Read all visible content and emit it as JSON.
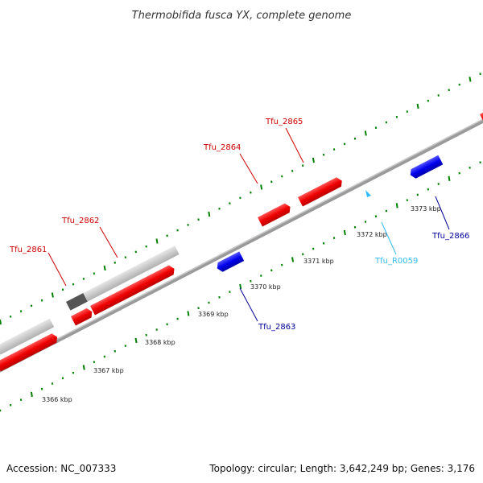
{
  "title": "Thermobifida fusca YX, complete genome",
  "footer": {
    "accession": "Accession: NC_007333",
    "summary": "Topology: circular; Length: 3,642,249 bp; Genes: 3,176"
  },
  "colors": {
    "forward_gene": "#ff0000",
    "reverse_gene": "#0000ff",
    "rna_gene": "#33ccff",
    "ruler_ticks": "#008000",
    "backbone": "#888888",
    "highlight_bar": "#cccccc",
    "highlight_bar_dark": "#555555",
    "forward_label": "#cc0000",
    "reverse_label": "#000099",
    "rna_label": "#33bbee"
  },
  "kbp_labels": [
    "3366 kbp",
    "3367 kbp",
    "3368 kbp",
    "3369 kbp",
    "3370 kbp",
    "3371 kbp",
    "3372 kbp",
    "3373 kbp"
  ],
  "genes": [
    {
      "name": "Tfu_2861",
      "strand": "forward"
    },
    {
      "name": "Tfu_2862",
      "strand": "forward"
    },
    {
      "name": "Tfu_2863",
      "strand": "reverse"
    },
    {
      "name": "Tfu_2864",
      "strand": "forward"
    },
    {
      "name": "Tfu_2865",
      "strand": "forward"
    },
    {
      "name": "Tfu_R0059",
      "strand": "rna"
    },
    {
      "name": "Tfu_2866",
      "strand": "reverse"
    }
  ]
}
